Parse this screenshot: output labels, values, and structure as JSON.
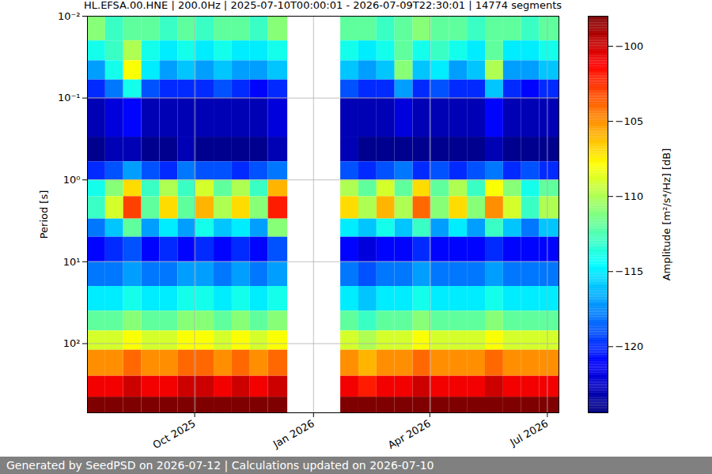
{
  "chart_data": {
    "type": "heatmap",
    "title": "HL.EFSA.00.HNE | 200.0Hz | 2025-07-10T00:00:01 - 2026-07-09T22:30:01 | 14774 segments",
    "caption": "Generated by SeedPSD on 2026-07-12 | Calculations updated on 2026-07-10",
    "y_label": "Period [s]",
    "colorbar_label": "Amplitude [m²/s⁴/Hz] [dB]",
    "x": [
      "2025-07-10T00:00:01",
      "2025-07-24",
      "2025-08-07",
      "2025-08-21",
      "2025-09-04",
      "2025-09-18",
      "2025-10-02",
      "2025-10-16",
      "2025-10-30",
      "2025-11-13",
      "2025-11-27",
      "2025-12-12",
      "2026-01-22",
      "2026-02-05",
      "2026-02-19",
      "2026-03-05",
      "2026-03-19",
      "2026-04-02",
      "2026-04-16",
      "2026-04-30",
      "2026-05-14",
      "2026-05-28",
      "2026-06-11",
      "2026-06-25",
      "2026-07-09T22:30:01"
    ],
    "y": [
      0.01,
      0.02,
      0.035,
      0.06,
      0.1,
      0.3,
      0.6,
      1,
      1.6,
      3,
      5,
      10,
      20,
      40,
      70,
      120,
      250,
      450,
      700
    ],
    "values": [
      [
        -111,
        -113,
        -112,
        -112,
        -113,
        -112,
        -113,
        -112,
        -112,
        -113,
        -111,
        null,
        -112,
        -112,
        -113,
        -112,
        -111,
        -112,
        -112,
        -113,
        -112,
        -112,
        -113,
        -112
      ],
      [
        -114,
        -113,
        -110,
        -114,
        -115,
        -114,
        -115,
        -114,
        -115,
        -115,
        -114,
        null,
        -114,
        -115,
        -114,
        -112,
        -114,
        -113,
        -114,
        -115,
        -112,
        -115,
        -115,
        -114
      ],
      [
        -117,
        -114,
        -108,
        -115,
        -117,
        -116,
        -117,
        -116,
        -117,
        -117,
        -116,
        null,
        -116,
        -117,
        -116,
        -111,
        -116,
        -115,
        -117,
        -116,
        -110,
        -117,
        -117,
        -116
      ],
      [
        -120,
        -118,
        -114,
        -119,
        -120,
        -120,
        -120,
        -119,
        -120,
        -121,
        -120,
        null,
        -119,
        -120,
        -120,
        -117,
        -120,
        -119,
        -120,
        -120,
        -116,
        -120,
        -121,
        -120
      ],
      [
        -123,
        -122,
        -121,
        -123,
        -123,
        -123,
        -123,
        -123,
        -123,
        -123,
        -122,
        null,
        -123,
        -123,
        -123,
        -122,
        -123,
        -123,
        -123,
        -123,
        -121,
        -123,
        -123,
        -123
      ],
      [
        -124,
        -123,
        -123,
        -124,
        -124,
        -123,
        -124,
        -124,
        -124,
        -124,
        -123,
        null,
        -123,
        -124,
        -124,
        -124,
        -124,
        -124,
        -124,
        -124,
        -123,
        -124,
        -124,
        -124
      ],
      [
        -120,
        -119,
        -117,
        -119,
        -120,
        -118,
        -119,
        -119,
        -120,
        -119,
        -118,
        null,
        -119,
        -120,
        -119,
        -118,
        -120,
        -119,
        -120,
        -119,
        -118,
        -120,
        -119,
        -120
      ],
      [
        -114,
        -111,
        -107,
        -113,
        -110,
        -113,
        -109,
        -112,
        -110,
        -113,
        -106,
        null,
        -110,
        -112,
        -109,
        -112,
        -107,
        -112,
        -110,
        -113,
        -108,
        -111,
        -114,
        -112
      ],
      [
        -113,
        -109,
        -103,
        -112,
        -107,
        -112,
        -106,
        -110,
        -107,
        -111,
        -102,
        null,
        -107,
        -110,
        -106,
        -110,
        -104,
        -111,
        -107,
        -111,
        -105,
        -109,
        -113,
        -110
      ],
      [
        -118,
        -116,
        -112,
        -117,
        -115,
        -117,
        -114,
        -116,
        -115,
        -117,
        -111,
        null,
        -115,
        -116,
        -114,
        -116,
        -113,
        -117,
        -115,
        -117,
        -113,
        -116,
        -118,
        -116
      ],
      [
        -121,
        -120,
        -119,
        -121,
        -120,
        -121,
        -120,
        -121,
        -120,
        -121,
        -119,
        null,
        -121,
        -122,
        -121,
        -121,
        -120,
        -121,
        -121,
        -121,
        -120,
        -121,
        -121,
        -121
      ],
      [
        -118,
        -118,
        -117,
        -118,
        -118,
        -117,
        -117,
        -118,
        -117,
        -118,
        -117,
        null,
        -118,
        -119,
        -118,
        -118,
        -117,
        -118,
        -118,
        -118,
        -117,
        -118,
        -118,
        -118
      ],
      [
        -115,
        -115,
        -114,
        -115,
        -115,
        -114,
        -114,
        -115,
        -114,
        -115,
        -114,
        null,
        -115,
        -116,
        -115,
        -115,
        -114,
        -115,
        -115,
        -115,
        -114,
        -115,
        -115,
        -115
      ],
      [
        -112,
        -112,
        -111,
        -112,
        -112,
        -111,
        -111,
        -112,
        -111,
        -112,
        -111,
        null,
        -112,
        -113,
        -112,
        -112,
        -111,
        -112,
        -112,
        -112,
        -111,
        -112,
        -112,
        -112
      ],
      [
        -109,
        -109,
        -108,
        -109,
        -109,
        -108,
        -108,
        -109,
        -108,
        -109,
        -108,
        null,
        -109,
        -110,
        -109,
        -109,
        -108,
        -109,
        -109,
        -109,
        -108,
        -109,
        -109,
        -109
      ],
      [
        -105,
        -105,
        -104,
        -105,
        -105,
        -104,
        -104,
        -105,
        -104,
        -105,
        -104,
        null,
        -105,
        -106,
        -105,
        -105,
        -104,
        -105,
        -105,
        -105,
        -104,
        -105,
        -105,
        -105
      ],
      [
        -101,
        -101,
        -100,
        -101,
        -101,
        -100,
        -100,
        -101,
        -100,
        -101,
        -100,
        null,
        -101,
        -102,
        -101,
        -101,
        -100,
        -101,
        -101,
        -101,
        -100,
        -101,
        -101,
        -101
      ],
      [
        -98,
        -98,
        -98,
        -98,
        -98,
        -98,
        -98,
        -98,
        -98,
        -98,
        -98,
        null,
        -98,
        -98,
        -98,
        -98,
        -98,
        -98,
        -98,
        -98,
        -98,
        -98,
        -98,
        -98
      ]
    ],
    "xlim": [
      "2025-07-10T00:00:01",
      "2026-07-09T22:30:01"
    ],
    "xticks": [
      {
        "value": "2025-10-01",
        "label": "Oct 2025"
      },
      {
        "value": "2026-01-01",
        "label": "Jan 2026"
      },
      {
        "value": "2026-04-01",
        "label": "Apr 2026"
      },
      {
        "value": "2026-07-01",
        "label": "Jul 2026"
      }
    ],
    "ylim": [
      0.01,
      700
    ],
    "yticks": [
      {
        "value": 0.01,
        "label": "10⁻²"
      },
      {
        "value": 0.1,
        "label": "10⁻¹"
      },
      {
        "value": 1,
        "label": "10⁰"
      },
      {
        "value": 10,
        "label": "10¹"
      },
      {
        "value": 100,
        "label": "10²"
      }
    ],
    "log": "y",
    "grid": true,
    "clim": [
      -124.4,
      -98
    ],
    "cticks": [
      -120,
      -115,
      -110,
      -105,
      -100
    ]
  }
}
